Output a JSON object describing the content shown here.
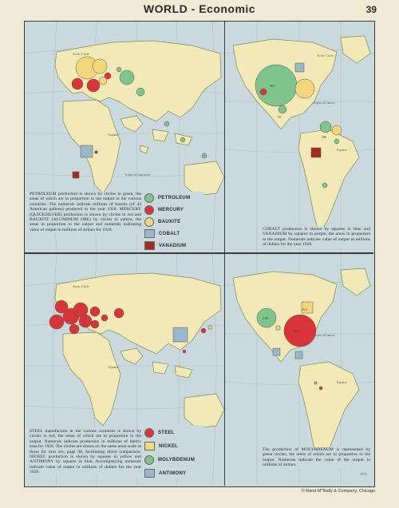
{
  "header": {
    "title": "WORLD - Economic",
    "page_number": "39"
  },
  "colors": {
    "ocean": "#c9d9dd",
    "land": "#f3e9b6",
    "coast": "#7a8a5a",
    "grid": "#aebfc2",
    "petroleum": "#7fc48c",
    "mercury": "#d8343a",
    "bauxite": "#f1d77a",
    "cobalt": "#9cb8c8",
    "vanadium": "#a32a25",
    "steel": "#d8343a",
    "nickel": "#f1d77a",
    "molybdenum": "#7fc48c",
    "antimony": "#9cb8c8"
  },
  "top_left": {
    "caption": "PETROLEUM production is shown by circles in green, the areas of which are in proportion to the output in the various countries. The numerals indicate millions of barrels (of 42 American gallons) produced in the year 1928. MERCURY (QUICKSILVER) production is shown by circles in red and BAUXITE (ALUMINUM ORE) by circles in yellow, the areas in proportion to the output and numerals indicating value of output in millions of dollars for 1928.",
    "legend": [
      {
        "label": "PETROLEUM",
        "shape": "circle",
        "color": "#7fc48c"
      },
      {
        "label": "MERCURY",
        "shape": "circle",
        "color": "#d8343a"
      },
      {
        "label": "BAUXITE",
        "shape": "circle",
        "color": "#f1d77a"
      },
      {
        "label": "COBALT",
        "shape": "square",
        "color": "#9cb8c8"
      },
      {
        "label": "VANADIUM",
        "shape": "square",
        "color": "#a32a25"
      }
    ],
    "map_labels": {
      "circle": "Arctic Circle",
      "equator": "Equator",
      "capricorn": "Tropic of Capricorn"
    }
  },
  "top_right": {
    "caption": "COBALT production is shown by squares in blue and VANADIUM by squares in purple, the areas in proportion to the output. Numerals indicate value of output in millions of dollars for the year 1928.",
    "map_labels": {
      "circle": "Arctic Circle",
      "cancer": "Tropic of Cancer",
      "equator": "Equator"
    },
    "values": {
      "usa_petroleum": "901",
      "mexico": "50",
      "venezuela": "106"
    }
  },
  "bottom_left": {
    "caption": "STEEL manufacture in the various countries is shown by circles in red, the areas of which are in proportion to the output. Numerals indicate production in millions of metric tons for 1928. The circles are drawn on the same areal scale as those for iron ore, page 38, facilitating direct comparison. NICKEL production is shown by squares in yellow and ANTIMONY by squares in blue. Accompanying numerals indicate value of output in millions of dollars for the year 1928.",
    "legend": [
      {
        "label": "STEEL",
        "shape": "circle",
        "color": "#d8343a"
      },
      {
        "label": "NICKEL",
        "shape": "square",
        "color": "#f1d77a"
      },
      {
        "label": "MOLYBDENUM",
        "shape": "circle",
        "color": "#7fc48c"
      },
      {
        "label": "ANTIMONY",
        "shape": "square",
        "color": "#9cb8c8"
      }
    ],
    "map_labels": {
      "circle": "Arctic Circle",
      "equator": "Equator"
    }
  },
  "bottom_right": {
    "caption": "The production of MOLYBDENUM is represented by green circles, the areas of which are in proportion to the output. Numerals indicate the value of the output in millions of dollars.",
    "map_labels": {
      "cancer": "Tropic of Cancer",
      "equator": "Equator"
    },
    "values": {
      "canada_nickel": "25.2",
      "usa_molybdenum": "1.98",
      "usa_steel": "52.2"
    }
  },
  "footer": {
    "plate_code": "8791",
    "credit": "© Rand M°Nally & Company, Chicago"
  }
}
